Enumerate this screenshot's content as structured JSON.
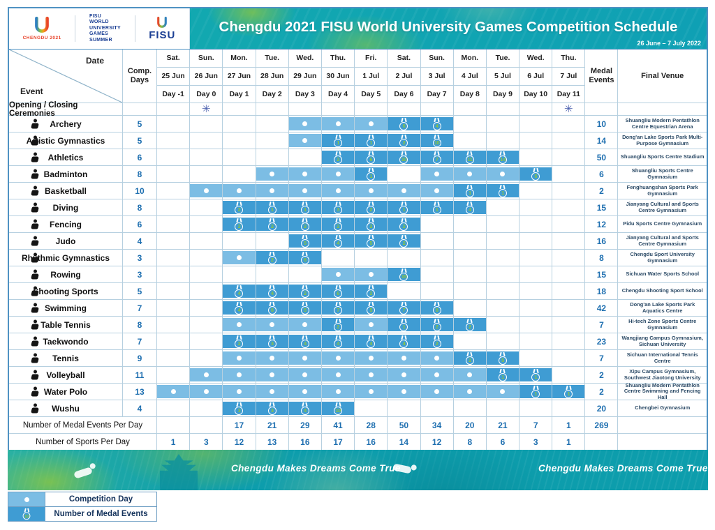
{
  "header": {
    "chengdu_logo_label": "CHENGDU 2021",
    "fisu_block": "FISU\nWORLD\nUNIVERSITY\nGAMES\nSUMMER",
    "fisu_logo_word": "FISU",
    "title": "Chengdu 2021 FISU World University Games Competition Schedule",
    "date_range": "26 June – 7 July 2022"
  },
  "columns": {
    "corner": {
      "date_label": "Date",
      "event_label": "Event"
    },
    "comp_days_label": "Comp.\nDays",
    "medal_events_label": "Medal\nEvents",
    "final_venue_label": "Final Venue",
    "days": [
      {
        "dow": "Sat.",
        "date": "25 Jun",
        "day": "Day -1"
      },
      {
        "dow": "Sun.",
        "date": "26 Jun",
        "day": "Day 0"
      },
      {
        "dow": "Mon.",
        "date": "27 Jun",
        "day": "Day 1"
      },
      {
        "dow": "Tue.",
        "date": "28 Jun",
        "day": "Day 2"
      },
      {
        "dow": "Wed.",
        "date": "29 Jun",
        "day": "Day 3"
      },
      {
        "dow": "Thu.",
        "date": "30 Jun",
        "day": "Day 4"
      },
      {
        "dow": "Fri.",
        "date": "1 Jul",
        "day": "Day 5"
      },
      {
        "dow": "Sat.",
        "date": "2 Jul",
        "day": "Day 6"
      },
      {
        "dow": "Sun.",
        "date": "3 Jul",
        "day": "Day 7"
      },
      {
        "dow": "Mon.",
        "date": "4 Jul",
        "day": "Day 8"
      },
      {
        "dow": "Tue.",
        "date": "5 Jul",
        "day": "Day 9"
      },
      {
        "dow": "Wed.",
        "date": "6 Jul",
        "day": "Day 10"
      },
      {
        "dow": "Thu.",
        "date": "7 Jul",
        "day": "Day 11"
      }
    ]
  },
  "ceremonies_row": {
    "label": "Opening / Closing Ceremonies",
    "cells": [
      0,
      "f",
      0,
      0,
      0,
      0,
      0,
      0,
      0,
      0,
      0,
      0,
      "f"
    ]
  },
  "sports": [
    {
      "name": "Archery",
      "icon": "archery-icon",
      "comp_days": 5,
      "cells": [
        0,
        0,
        0,
        0,
        "d",
        "d",
        "d",
        6,
        4,
        0,
        0,
        0,
        0
      ],
      "medal_events": 10,
      "venue": "Shuangliu Modern Pentathlon Centre Equestrian Arena"
    },
    {
      "name": "Artistic Gymnastics",
      "icon": "artistic-gymnastics-icon",
      "comp_days": 5,
      "cells": [
        0,
        0,
        0,
        0,
        "d",
        1,
        1,
        2,
        10,
        0,
        0,
        0,
        0
      ],
      "medal_events": 14,
      "venue": "Dong'an Lake Sports Park Multi-Purpose Gymnasium"
    },
    {
      "name": "Athletics",
      "icon": "athletics-icon",
      "comp_days": 6,
      "cells": [
        0,
        0,
        0,
        0,
        0,
        2,
        6,
        10,
        7,
        11,
        14,
        0,
        0
      ],
      "medal_events": 50,
      "venue": "Shuangliu Sports Centre Stadium"
    },
    {
      "name": "Badminton",
      "icon": "badminton-icon",
      "comp_days": 8,
      "cells": [
        0,
        0,
        0,
        "d",
        "d",
        "d",
        1,
        0,
        "d",
        "d",
        "d",
        5,
        0
      ],
      "medal_events": 6,
      "venue": "Shuangliu Sports Centre Gymnasium"
    },
    {
      "name": "Basketball",
      "icon": "basketball-icon",
      "comp_days": 10,
      "cells": [
        0,
        "d",
        "d",
        "d",
        "d",
        "d",
        "d",
        "d",
        "d",
        1,
        1,
        0,
        0
      ],
      "medal_events": 2,
      "venue": "Fenghuangshan Sports Park Gymnasium"
    },
    {
      "name": "Diving",
      "icon": "diving-icon",
      "comp_days": 8,
      "cells": [
        0,
        0,
        2,
        1,
        1,
        3,
        2,
        1,
        1,
        4,
        0,
        0,
        0
      ],
      "medal_events": 15,
      "venue": "Jianyang Cultural and Sports Centre Gymnasium"
    },
    {
      "name": "Fencing",
      "icon": "fencing-icon",
      "comp_days": 6,
      "cells": [
        0,
        0,
        2,
        2,
        2,
        2,
        2,
        2,
        0,
        0,
        0,
        0,
        0
      ],
      "medal_events": 12,
      "venue": "Pidu Sports Centre Gymnasium"
    },
    {
      "name": "Judo",
      "icon": "judo-icon",
      "comp_days": 4,
      "cells": [
        0,
        0,
        0,
        0,
        5,
        4,
        5,
        2,
        0,
        0,
        0,
        0,
        0
      ],
      "medal_events": 16,
      "venue": "Jianyang Cultural and Sports Centre Gymnasium"
    },
    {
      "name": "Rhythmic Gymnastics",
      "icon": "rhythmic-gymnastics-icon",
      "comp_days": 3,
      "cells": [
        0,
        0,
        "d",
        2,
        6,
        0,
        0,
        0,
        0,
        0,
        0,
        0,
        0
      ],
      "medal_events": 8,
      "venue": "Chengdu Sport University Gymnasium"
    },
    {
      "name": "Rowing",
      "icon": "rowing-icon",
      "comp_days": 3,
      "cells": [
        0,
        0,
        0,
        0,
        0,
        "d",
        "d",
        15,
        0,
        0,
        0,
        0,
        0
      ],
      "medal_events": 15,
      "venue": "Sichuan Water Sports School"
    },
    {
      "name": "Shooting Sports",
      "icon": "shooting-sports-icon",
      "comp_days": 5,
      "cells": [
        0,
        0,
        4,
        4,
        2,
        6,
        2,
        0,
        0,
        0,
        0,
        0,
        0
      ],
      "medal_events": 18,
      "venue": "Chengdu Shooting Sport School"
    },
    {
      "name": "Swimming",
      "icon": "swimming-icon",
      "comp_days": 7,
      "cells": [
        0,
        0,
        4,
        6,
        5,
        7,
        5,
        7,
        8,
        0,
        0,
        0,
        0
      ],
      "medal_events": 42,
      "venue": "Dong'an Lake Sports Park Aquatics Centre"
    },
    {
      "name": "Table Tennis",
      "icon": "table-tennis-icon",
      "comp_days": 8,
      "cells": [
        0,
        0,
        "d",
        "d",
        "d",
        2,
        "d",
        1,
        2,
        2,
        0,
        0,
        0
      ],
      "medal_events": 7,
      "venue": "Hi-tech Zone Sports Centre Gymnasium"
    },
    {
      "name": "Taekwondo",
      "icon": "taekwondo-icon",
      "comp_days": 7,
      "cells": [
        0,
        0,
        2,
        3,
        4,
        4,
        4,
        4,
        2,
        0,
        0,
        0,
        0
      ],
      "medal_events": 23,
      "venue": "Wangjiang Campus Gymnasium, Sichuan University"
    },
    {
      "name": "Tennis",
      "icon": "tennis-icon",
      "comp_days": 9,
      "cells": [
        0,
        0,
        "d",
        "d",
        "d",
        "d",
        "d",
        "d",
        "d",
        2,
        5,
        0,
        0
      ],
      "medal_events": 7,
      "venue": "Sichuan International Tennis Centre"
    },
    {
      "name": "Volleyball",
      "icon": "volleyball-icon",
      "comp_days": 11,
      "cells": [
        0,
        "d",
        "d",
        "d",
        "d",
        "d",
        "d",
        "d",
        "d",
        "d",
        1,
        1,
        0
      ],
      "medal_events": 2,
      "venue": "Xipu Campus Gymnasium, Southwest Jiaotong University"
    },
    {
      "name": "Water Polo",
      "icon": "water-polo-icon",
      "comp_days": 13,
      "cells": [
        "d",
        "d",
        "d",
        "d",
        "d",
        "d",
        "d",
        "d",
        "d",
        "d",
        "d",
        1,
        1
      ],
      "medal_events": 2,
      "venue": "Shuangliu Modern Pentathlon Centre Swimming and Fencing Hall"
    },
    {
      "name": "Wushu",
      "icon": "wushu-icon",
      "comp_days": 4,
      "cells": [
        0,
        0,
        3,
        3,
        4,
        10,
        0,
        0,
        0,
        0,
        0,
        0,
        0
      ],
      "medal_events": 20,
      "venue": "Chengbei Gymnasium"
    }
  ],
  "footer": [
    {
      "label": "Number of Medal Events Per Day",
      "cells": [
        "",
        "",
        17,
        21,
        29,
        41,
        28,
        50,
        34,
        20,
        21,
        7,
        1
      ],
      "total": "269"
    },
    {
      "label": "Number of Sports Per Day",
      "cells": [
        1,
        3,
        12,
        13,
        16,
        17,
        16,
        14,
        12,
        8,
        6,
        3,
        1
      ],
      "total": ""
    }
  ],
  "banner": {
    "slogan_1": "Chengdu Makes  Dreams Come True",
    "slogan_2": "Chengdu Makes  Dreams Come True"
  },
  "legend": [
    {
      "type": "dot",
      "label": "Competition Day"
    },
    {
      "type": "medal",
      "medal_number": "10",
      "label": "Number of Medal Events"
    }
  ],
  "colors": {
    "competition_day_cell": "#7cbde4",
    "medal_day_cell": "#3f9cd3",
    "medal_number_green": "#8CC63E",
    "accent_blue_text": "#1e6fb0",
    "title_band_teal": "#0fa3b1"
  }
}
